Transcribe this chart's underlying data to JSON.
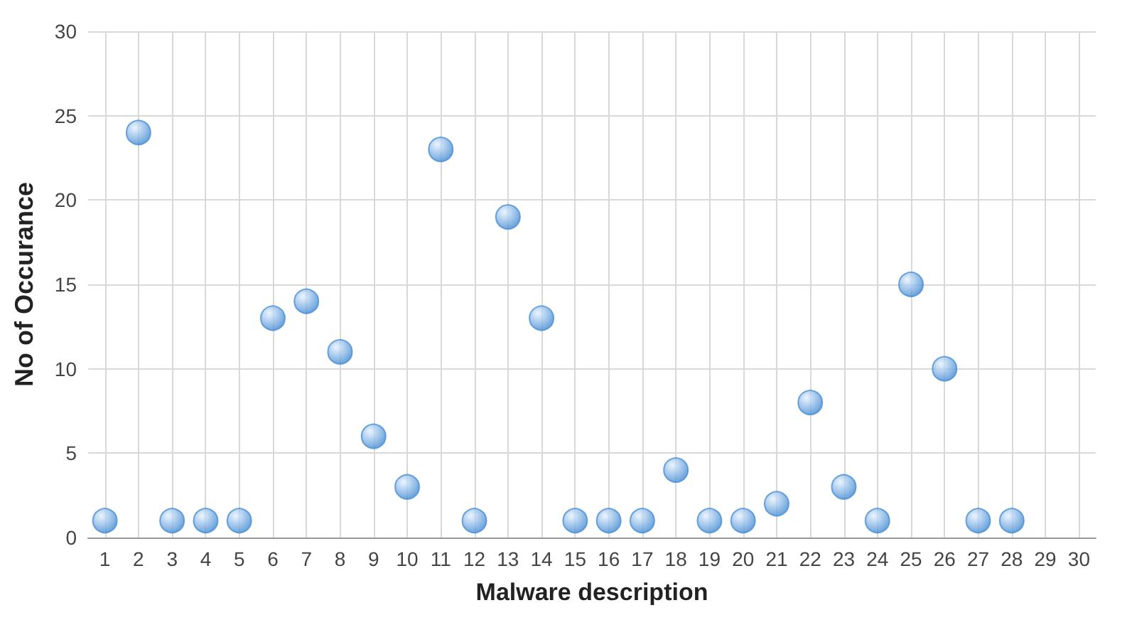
{
  "chart_data": {
    "type": "scatter",
    "xlabel": "Malware description",
    "ylabel": "No of Occurance",
    "x": [
      1,
      2,
      3,
      4,
      5,
      6,
      7,
      8,
      9,
      10,
      11,
      12,
      13,
      14,
      15,
      16,
      17,
      18,
      19,
      20,
      21,
      22,
      23,
      24,
      25,
      26,
      27,
      28
    ],
    "series": [
      {
        "color": "#4a8fd4",
        "values": [
          1,
          24,
          1,
          1,
          1,
          13,
          14,
          11,
          6,
          3,
          23,
          1,
          19,
          13,
          1,
          1,
          1,
          4,
          1,
          1,
          2,
          8,
          3,
          1,
          15,
          10,
          1,
          1
        ]
      }
    ],
    "xlim": [
      0.5,
      30.5
    ],
    "xticks": [
      1,
      2,
      3,
      4,
      5,
      6,
      7,
      8,
      9,
      10,
      11,
      12,
      13,
      14,
      15,
      16,
      17,
      18,
      19,
      20,
      21,
      22,
      23,
      24,
      25,
      26,
      27,
      28,
      29,
      30
    ],
    "ylim": [
      0,
      30
    ],
    "yticks": [
      0,
      5,
      10,
      15,
      20,
      25,
      30
    ],
    "grid": true,
    "marker": "circle"
  }
}
